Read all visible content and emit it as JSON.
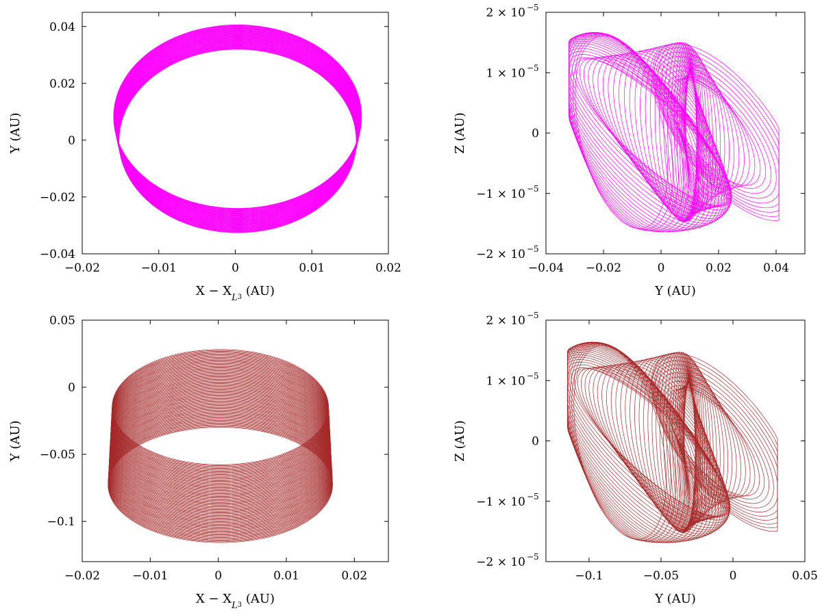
{
  "chart_data": [
    {
      "type": "line",
      "panel": "top-left",
      "xlabel": "X − X_L3 (AU)",
      "ylabel": "Y (AU)",
      "xlim": [
        -0.02,
        0.02
      ],
      "ylim": [
        -0.04,
        0.045
      ],
      "xticks": [
        -0.02,
        -0.01,
        0,
        0.01,
        0.02
      ],
      "xtick_labels": [
        "−0.02",
        "−0.01",
        "0",
        "0.01",
        "0.02"
      ],
      "yticks": [
        -0.04,
        -0.02,
        0,
        0.02,
        0.04
      ],
      "ytick_labels": [
        "−0.04",
        "−0.02",
        "0",
        "0.02",
        "0.04"
      ],
      "color": "#ff00ff",
      "series": [
        {
          "kind": "drifting-ellipses",
          "cx": 0.0003,
          "cy_start": -0.0003,
          "cy_end": 0.0083,
          "rx_start": 0.0155,
          "rx_end": 0.0162,
          "ry": 0.0323,
          "loops": 60
        }
      ]
    },
    {
      "type": "line",
      "panel": "top-right",
      "xlabel": "Y (AU)",
      "ylabel": "Z (AU)",
      "xlim": [
        -0.04,
        0.05
      ],
      "ylim": [
        -2e-05,
        2e-05
      ],
      "xticks": [
        -0.04,
        -0.02,
        0,
        0.02,
        0.04
      ],
      "xtick_labels": [
        "−0.04",
        "−0.02",
        "0",
        "0.02",
        "0.04"
      ],
      "yticks": [
        -2e-05,
        -1e-05,
        0,
        1e-05,
        2e-05
      ],
      "ytick_labels": [
        "−2 × 10",
        "−1 × 10",
        "0",
        "1 × 10",
        "2 × 10"
      ],
      "ytick_exponents": [
        "−5",
        "−5",
        "",
        "−5",
        "−5"
      ],
      "color": "#ff00ff",
      "series": [
        {
          "kind": "skewed-loops",
          "x_range": [
            -0.032,
            0.041
          ],
          "z_range": [
            -1.7e-05,
            1.73e-05
          ],
          "loops": 70
        }
      ]
    },
    {
      "type": "line",
      "panel": "bottom-left",
      "xlabel": "X − X_L3 (AU)",
      "ylabel": "Y (AU)",
      "xlim": [
        -0.02,
        0.025
      ],
      "ylim": [
        -0.13,
        0.05
      ],
      "xticks": [
        -0.02,
        -0.01,
        0,
        0.01,
        0.02
      ],
      "xtick_labels": [
        "−0.02",
        "−0.01",
        "0",
        "0.01",
        "0.02"
      ],
      "yticks": [
        -0.1,
        -0.05,
        0,
        0.05
      ],
      "ytick_labels": [
        "−0.1",
        "−0.05",
        "0",
        "0.05"
      ],
      "color": "#a52a2a",
      "series": [
        {
          "kind": "drifting-ellipses",
          "cx": 0.0003,
          "cy_start": -0.0148,
          "cy_end": -0.0728,
          "rx_start": 0.0159,
          "rx_end": 0.0165,
          "ry": 0.043,
          "loops": 90
        }
      ]
    },
    {
      "type": "line",
      "panel": "bottom-right",
      "xlabel": "Y (AU)",
      "ylabel": "Z (AU)",
      "xlim": [
        -0.13,
        0.05
      ],
      "ylim": [
        -2e-05,
        2e-05
      ],
      "xticks": [
        -0.1,
        -0.05,
        0,
        0.05
      ],
      "xtick_labels": [
        "−0.1",
        "−0.05",
        "0",
        "0.05"
      ],
      "yticks": [
        -2e-05,
        -1e-05,
        0,
        1e-05,
        2e-05
      ],
      "ytick_labels": [
        "−2 × 10",
        "−1 × 10",
        "0",
        "1 × 10",
        "2 × 10"
      ],
      "ytick_exponents": [
        "−5",
        "−5",
        "",
        "−5",
        "−5"
      ],
      "color": "#a52a2a",
      "series": [
        {
          "kind": "skewed-loops",
          "x_range": [
            -0.115,
            0.031
          ],
          "z_range": [
            -1.75e-05,
            1.7e-05
          ],
          "loops": 80
        }
      ]
    }
  ]
}
